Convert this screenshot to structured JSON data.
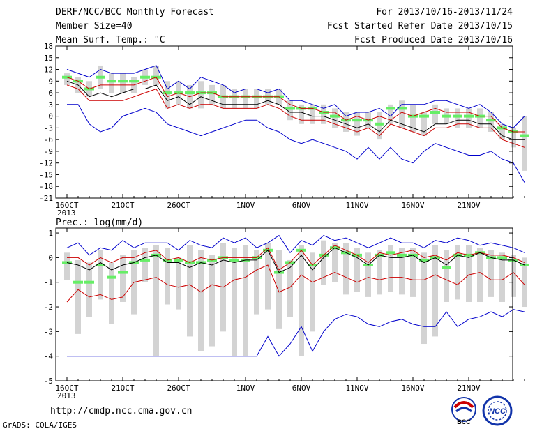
{
  "header": {
    "title": "DERF/NCC/BCC Monthly Forecast",
    "member_size": "Member Size=40",
    "variable": "Mean Surf. Temp.: °C",
    "period": "For 2013/10/16-2013/11/24",
    "fcst_start": "Fcst Started Refer Date 2013/10/15",
    "fcst_produced": "Fcst Produced Date 2013/10/16"
  },
  "footer": {
    "url": "http://cmdp.ncc.cma.gov.cn",
    "credit": "GrADS: COLA/IGES",
    "logo1_text": "BCC",
    "logo2_text": "NCC"
  },
  "colors": {
    "box": "#d3d3d3",
    "median": "#66ee66",
    "mean": "#000000",
    "spread": "#cc0000",
    "extreme": "#0000cc"
  },
  "chart_data": [
    {
      "type": "line",
      "title": "",
      "ylabel": "Mean Surf. Temp.: °C",
      "xlabel": "",
      "ylim": [
        -21,
        18
      ],
      "yticks": [
        18,
        15,
        12,
        9,
        6,
        3,
        0,
        -3,
        -6,
        -9,
        -12,
        -15,
        -18,
        -21
      ],
      "xtick_labels": [
        {
          "day": 0,
          "label": "16OCT"
        },
        {
          "day": 5,
          "label": "21OCT"
        },
        {
          "day": 10,
          "label": "26OCT"
        },
        {
          "day": 16,
          "label": "1NOV"
        },
        {
          "day": 21,
          "label": "6NOV"
        },
        {
          "day": 26,
          "label": "11NOV"
        },
        {
          "day": 31,
          "label": "16NOV"
        },
        {
          "day": 36,
          "label": "21NOV"
        }
      ],
      "year_label": "2013",
      "series": [
        {
          "key": "max",
          "values": [
            12,
            11,
            10,
            12,
            11,
            11,
            11,
            12,
            13,
            7,
            9,
            7,
            10,
            9,
            8,
            6,
            7,
            7,
            6,
            7,
            4,
            4,
            3,
            2,
            3,
            0,
            1,
            1,
            2,
            0,
            3,
            3,
            3,
            4,
            4,
            3,
            2,
            3,
            1,
            -2,
            -3,
            0
          ]
        },
        {
          "key": "upper",
          "values": [
            10,
            9,
            7,
            8,
            8,
            8,
            8,
            9,
            10,
            5,
            6,
            5,
            6,
            6,
            5,
            5,
            5,
            5,
            5,
            5,
            3,
            2,
            2,
            1,
            1,
            -1,
            0,
            -1,
            0,
            -1,
            1,
            0,
            1,
            2,
            1,
            1,
            1,
            0,
            0,
            -3,
            -4,
            -4
          ]
        },
        {
          "key": "mean",
          "values": [
            9,
            8,
            5,
            6,
            5,
            6,
            7,
            7,
            8,
            4,
            5,
            3,
            5,
            4,
            3,
            3,
            3,
            3,
            4,
            3,
            1,
            1,
            0,
            0,
            -1,
            -2,
            -3,
            -2,
            -4,
            -1,
            -2,
            -3,
            -4,
            -2,
            -2,
            -1,
            -1,
            -2,
            -2,
            -5,
            -6,
            -6
          ]
        },
        {
          "key": "lower",
          "values": [
            8,
            7,
            4,
            4,
            4,
            4,
            5,
            6,
            7,
            2,
            3,
            2,
            3,
            3,
            2,
            2,
            2,
            2,
            3,
            2,
            0,
            -1,
            -1,
            -1,
            -2,
            -3,
            -4,
            -3,
            -5,
            -2,
            -3,
            -4,
            -5,
            -3,
            -3,
            -2,
            -2,
            -3,
            -3,
            -6,
            -7,
            -8
          ]
        },
        {
          "key": "min",
          "values": [
            3,
            3,
            -2,
            -4,
            -3,
            0,
            1,
            2,
            1,
            -2,
            -3,
            -4,
            -5,
            -4,
            -3,
            -2,
            -1,
            -1,
            -3,
            -4,
            -6,
            -7,
            -6,
            -7,
            -8,
            -9,
            -11,
            -8,
            -11,
            -8,
            -11,
            -12,
            -9,
            -7,
            -8,
            -9,
            -10,
            -10,
            -9,
            -11,
            -12,
            -17
          ]
        },
        {
          "key": "median",
          "values": [
            10,
            9,
            7,
            10,
            9,
            9,
            9,
            10,
            10,
            6,
            6,
            6,
            6,
            6,
            5,
            5,
            5,
            5,
            5,
            5,
            2,
            2,
            2,
            1,
            0,
            -1,
            -1,
            -1,
            -2,
            2,
            2,
            0,
            0,
            1,
            0,
            0,
            0,
            0,
            -1,
            -3,
            -4,
            -5
          ]
        },
        {
          "key": "box_hi",
          "values": [
            11,
            10,
            9,
            13,
            11,
            11,
            10,
            12,
            13,
            9,
            9,
            8,
            9,
            8,
            8,
            7,
            7,
            7,
            7,
            7,
            4,
            3,
            3,
            3,
            2,
            1,
            1,
            1,
            1,
            3,
            4,
            3,
            1,
            3,
            2,
            2,
            2,
            2,
            1,
            -2,
            -3,
            0
          ]
        },
        {
          "key": "box_lo",
          "values": [
            8,
            6,
            5,
            7,
            6,
            6,
            6,
            8,
            8,
            2,
            3,
            2,
            2,
            3,
            2,
            2,
            2,
            2,
            3,
            3,
            -1,
            -2,
            -2,
            -2,
            -3,
            -4,
            -5,
            -3,
            -6,
            -2,
            -3,
            -4,
            -5,
            -2,
            -2,
            -3,
            -3,
            -3,
            -4,
            -6,
            -8,
            -14
          ]
        }
      ]
    },
    {
      "type": "line",
      "title": "",
      "ylabel": "Prec.: log(mm/d)",
      "xlabel": "",
      "ylim": [
        -5,
        1.2
      ],
      "yticks": [
        1,
        0,
        -1,
        -2,
        -3,
        -4,
        -5
      ],
      "xtick_labels": [
        {
          "day": 0,
          "label": "16OCT"
        },
        {
          "day": 5,
          "label": "21OCT"
        },
        {
          "day": 10,
          "label": "26OCT"
        },
        {
          "day": 16,
          "label": "1NOV"
        },
        {
          "day": 21,
          "label": "6NOV"
        },
        {
          "day": 26,
          "label": "11NOV"
        },
        {
          "day": 31,
          "label": "16NOV"
        },
        {
          "day": 36,
          "label": "21NOV"
        }
      ],
      "year_label": "2013",
      "series": [
        {
          "key": "max",
          "values": [
            0.4,
            0.6,
            0.1,
            0.4,
            0.3,
            0.7,
            0.4,
            0.6,
            0.6,
            0.6,
            0.3,
            0.7,
            0.5,
            0.4,
            0.8,
            0.6,
            0.8,
            0.4,
            0.6,
            0.9,
            0.2,
            0.7,
            0.5,
            0.9,
            0.7,
            0.8,
            0.6,
            0.4,
            0.6,
            0.8,
            0.6,
            0.6,
            0.4,
            0.7,
            0.6,
            0.8,
            0.7,
            0.5,
            0.6,
            0.5,
            0.4,
            0.2
          ]
        },
        {
          "key": "upper",
          "values": [
            0.0,
            0.0,
            -0.3,
            0.0,
            -0.2,
            0.0,
            0.0,
            0.2,
            0.3,
            -0.1,
            0.0,
            -0.2,
            0.0,
            -0.1,
            0.0,
            0.0,
            0.0,
            0.0,
            0.4,
            -0.5,
            -0.2,
            0.3,
            -0.3,
            0.1,
            0.5,
            0.3,
            0.1,
            -0.2,
            0.2,
            0.1,
            0.2,
            0.3,
            0.0,
            0.1,
            -0.1,
            0.2,
            0.1,
            0.2,
            0.1,
            0.1,
            0.0,
            -0.2
          ]
        },
        {
          "key": "mean",
          "values": [
            -0.2,
            -0.3,
            -0.5,
            -0.2,
            -0.5,
            -0.3,
            -0.2,
            0.0,
            0.1,
            -0.2,
            -0.2,
            -0.4,
            -0.2,
            -0.3,
            -0.1,
            -0.2,
            -0.1,
            -0.1,
            0.3,
            -0.6,
            -0.4,
            0.1,
            -0.5,
            0.0,
            0.4,
            0.2,
            0.0,
            -0.3,
            0.1,
            0.0,
            0.0,
            0.1,
            -0.2,
            0.0,
            -0.3,
            0.1,
            0.0,
            0.2,
            0.0,
            -0.1,
            -0.1,
            -0.3
          ]
        },
        {
          "key": "lower",
          "values": [
            -1.8,
            -1.3,
            -1.6,
            -1.5,
            -1.7,
            -1.6,
            -1.0,
            -0.9,
            -0.8,
            -1.1,
            -1.2,
            -1.1,
            -1.4,
            -1.1,
            -1.2,
            -0.9,
            -0.8,
            -0.5,
            -0.3,
            -1.4,
            -1.2,
            -0.7,
            -1.0,
            -0.8,
            -0.6,
            -0.8,
            -1.0,
            -0.8,
            -0.9,
            -0.8,
            -0.8,
            -0.9,
            -0.9,
            -0.7,
            -0.9,
            -1.1,
            -0.7,
            -0.6,
            -0.9,
            -0.9,
            -0.6,
            -1.1
          ]
        },
        {
          "key": "min",
          "values": [
            -4,
            -4,
            -4,
            -4,
            -4,
            -4,
            -4,
            -4,
            -4,
            -4,
            -4,
            -4,
            -4,
            -4,
            -4,
            -4,
            -4,
            -4,
            -3.2,
            -4,
            -3.5,
            -2.8,
            -3.8,
            -3.0,
            -2.5,
            -2.3,
            -2.4,
            -2.7,
            -2.8,
            -2.6,
            -2.5,
            -2.7,
            -2.8,
            -2.8,
            -2.2,
            -2.8,
            -2.5,
            -2.4,
            -2.2,
            -2.4,
            -2.1,
            -2.2
          ]
        },
        {
          "key": "median",
          "values": [
            -0.2,
            -1.0,
            -1.0,
            -0.3,
            -0.8,
            -0.6,
            -0.2,
            -0.1,
            0.1,
            -0.1,
            -0.1,
            -0.2,
            -0.2,
            -0.1,
            0.0,
            -0.1,
            -0.1,
            0.0,
            0.3,
            -0.6,
            -0.2,
            0.3,
            -0.3,
            0.1,
            0.4,
            0.2,
            0.1,
            -0.3,
            0.1,
            0.2,
            0.1,
            0.1,
            -0.1,
            0.0,
            -0.4,
            0.1,
            0.1,
            0.2,
            0.0,
            0.0,
            -0.1,
            -0.3
          ]
        },
        {
          "key": "box_hi",
          "values": [
            0.2,
            -0.1,
            -0.2,
            0.3,
            -0.2,
            0.1,
            0.3,
            0.4,
            0.5,
            0.4,
            0.0,
            0.5,
            0.3,
            0.1,
            0.6,
            0.4,
            0.5,
            0.3,
            0.6,
            0.3,
            -0.1,
            0.5,
            0.2,
            0.7,
            0.6,
            0.6,
            0.4,
            0.2,
            0.3,
            0.5,
            0.4,
            0.4,
            0.2,
            0.5,
            0.3,
            0.5,
            0.5,
            0.4,
            0.3,
            0.2,
            0.1,
            0.0
          ]
        },
        {
          "key": "box_lo",
          "values": [
            -0.9,
            -3.1,
            -2.4,
            -1.7,
            -2.7,
            -1.8,
            -2.3,
            -1.0,
            -4.0,
            -1.9,
            -2.1,
            -3.2,
            -3.8,
            -3.6,
            -3.0,
            -4.0,
            -4.0,
            -2.3,
            -2.1,
            -2.9,
            -2.4,
            -4.0,
            -3.0,
            -1.1,
            -1.0,
            -1.5,
            -1.4,
            -1.6,
            -1.5,
            -1.4,
            -1.5,
            -1.6,
            -3.5,
            -3.2,
            -1.8,
            -1.7,
            -1.8,
            -1.8,
            -1.6,
            -1.8,
            -1.6,
            -2.0
          ]
        }
      ]
    }
  ]
}
